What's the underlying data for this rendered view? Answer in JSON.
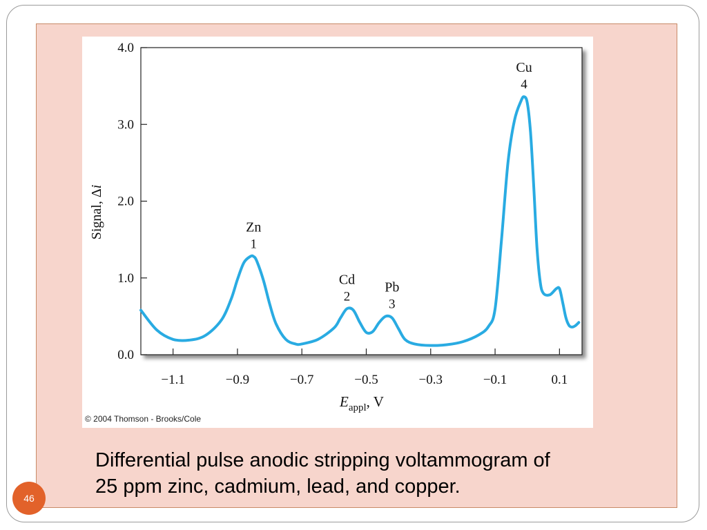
{
  "slide": {
    "page_number": "46",
    "caption_lines": [
      "Differential pulse anodic stripping voltammogram of",
      "25 ppm zinc, cadmium, lead, and copper."
    ],
    "copyright": "© 2004 Thomson - Brooks/Cole"
  },
  "colors": {
    "panel": "#f7d5cc",
    "panel_border": "#c88a66",
    "curve": "#29abe2",
    "badge": "#e2622a"
  },
  "chart_data": {
    "type": "line",
    "title": "",
    "xlabel": {
      "italic": "E",
      "subscript": "appl",
      "suffix": ", V"
    },
    "ylabel": {
      "prefix": "Signal, Δ",
      "italic": "i"
    },
    "xlim": [
      -1.2,
      0.17
    ],
    "ylim": [
      0.0,
      4.0
    ],
    "xticks": [
      -1.1,
      -0.9,
      -0.7,
      -0.5,
      -0.3,
      -0.1,
      0.1
    ],
    "xtick_labels": [
      "−1.1",
      "−0.9",
      "−0.7",
      "−0.5",
      "−0.3",
      "−0.1",
      "0.1"
    ],
    "yticks": [
      0.0,
      1.0,
      2.0,
      3.0,
      4.0
    ],
    "ytick_labels": [
      "0.0",
      "1.0",
      "2.0",
      "3.0",
      "4.0"
    ],
    "grid": false,
    "series": [
      {
        "x": [
          -1.2,
          -1.15,
          -1.1,
          -1.05,
          -1.0,
          -0.95,
          -0.92,
          -0.9,
          -0.88,
          -0.86,
          -0.85,
          -0.84,
          -0.82,
          -0.8,
          -0.78,
          -0.75,
          -0.72,
          -0.7,
          -0.65,
          -0.6,
          -0.58,
          -0.56,
          -0.54,
          -0.52,
          -0.5,
          -0.48,
          -0.46,
          -0.44,
          -0.42,
          -0.4,
          -0.38,
          -0.35,
          -0.3,
          -0.25,
          -0.2,
          -0.15,
          -0.12,
          -0.1,
          -0.08,
          -0.06,
          -0.04,
          -0.02,
          -0.01,
          0.0,
          0.01,
          0.02,
          0.03,
          0.04,
          0.05,
          0.07,
          0.09,
          0.1,
          0.11,
          0.12,
          0.13,
          0.14,
          0.15,
          0.16
        ],
        "y": [
          0.58,
          0.32,
          0.2,
          0.19,
          0.25,
          0.45,
          0.72,
          0.98,
          1.2,
          1.28,
          1.28,
          1.22,
          0.98,
          0.66,
          0.4,
          0.2,
          0.14,
          0.14,
          0.2,
          0.35,
          0.48,
          0.6,
          0.58,
          0.42,
          0.29,
          0.3,
          0.42,
          0.5,
          0.48,
          0.34,
          0.2,
          0.14,
          0.12,
          0.13,
          0.17,
          0.26,
          0.37,
          0.6,
          1.5,
          2.5,
          3.05,
          3.3,
          3.36,
          3.28,
          2.9,
          2.2,
          1.4,
          0.95,
          0.8,
          0.78,
          0.86,
          0.86,
          0.68,
          0.48,
          0.38,
          0.36,
          0.38,
          0.42
        ]
      }
    ],
    "annotations": [
      {
        "element": "Zn",
        "number": "1",
        "x": -0.85,
        "y": 1.28
      },
      {
        "element": "Cd",
        "number": "2",
        "x": -0.56,
        "y": 0.6
      },
      {
        "element": "Pb",
        "number": "3",
        "x": -0.42,
        "y": 0.5
      },
      {
        "element": "Cu",
        "number": "4",
        "x": -0.01,
        "y": 3.36
      }
    ]
  }
}
